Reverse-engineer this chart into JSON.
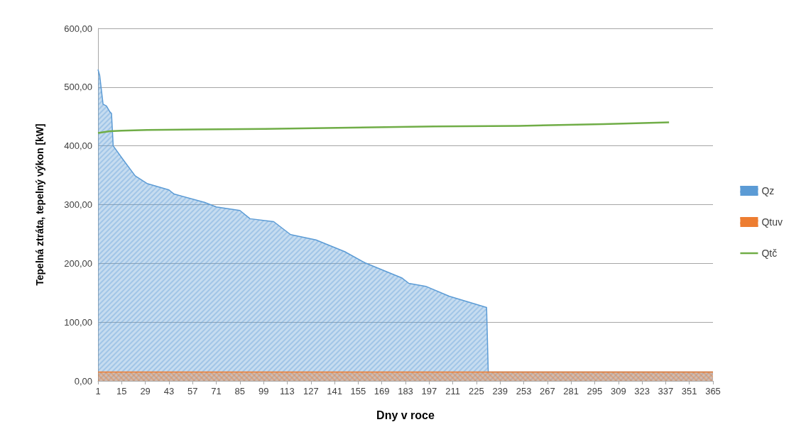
{
  "chart_data": {
    "type": "area",
    "stacked": true,
    "xlabel": "Dny v roce",
    "ylabel": "Tepelná ztráta, tepelný výkon [kW]",
    "x": [
      1,
      2,
      4,
      6,
      8,
      9,
      10,
      16,
      23,
      30,
      43,
      46,
      64,
      71,
      85,
      91,
      105,
      115,
      130,
      147,
      159,
      181,
      185,
      195,
      209,
      223,
      231,
      232,
      365
    ],
    "series": [
      {
        "name": "Qtuv",
        "color": "#ed7d31",
        "values": [
          15,
          15,
          15,
          15,
          15,
          15,
          15,
          15,
          15,
          15,
          15,
          15,
          15,
          15,
          15,
          15,
          15,
          15,
          15,
          15,
          15,
          15,
          15,
          15,
          15,
          15,
          15,
          15,
          15
        ]
      },
      {
        "name": "Qz",
        "color": "#5b9bd5",
        "values": [
          515,
          505,
          456,
          453,
          443,
          440,
          385,
          361,
          334,
          321,
          310,
          303,
          289,
          281,
          275,
          261,
          256,
          234,
          225,
          205,
          186,
          160,
          151,
          146,
          129,
          117,
          110,
          0,
          0
        ]
      },
      {
        "name": "Qtč",
        "type": "line",
        "color": "#70ad47",
        "x": [
          1,
          8,
          15,
          30,
          60,
          100,
          150,
          200,
          250,
          300,
          339
        ],
        "values": [
          422,
          425,
          426,
          427,
          428,
          429,
          431,
          433,
          434,
          437,
          440
        ]
      }
    ],
    "xlim": [
      1,
      365
    ],
    "xticks": [
      1,
      15,
      29,
      43,
      57,
      71,
      85,
      99,
      113,
      127,
      141,
      155,
      169,
      183,
      197,
      211,
      225,
      239,
      253,
      267,
      281,
      295,
      309,
      323,
      337,
      351,
      365
    ],
    "ylim": [
      0,
      600
    ],
    "yticks": [
      {
        "value": 0,
        "label": "0,00"
      },
      {
        "value": 100,
        "label": "100,00"
      },
      {
        "value": 200,
        "label": "200,00"
      },
      {
        "value": 300,
        "label": "300,00"
      },
      {
        "value": 400,
        "label": "400,00"
      },
      {
        "value": 500,
        "label": "500,00"
      },
      {
        "value": 600,
        "label": "600,00"
      }
    ],
    "grid": "y",
    "legend": "right",
    "marker": "none"
  }
}
